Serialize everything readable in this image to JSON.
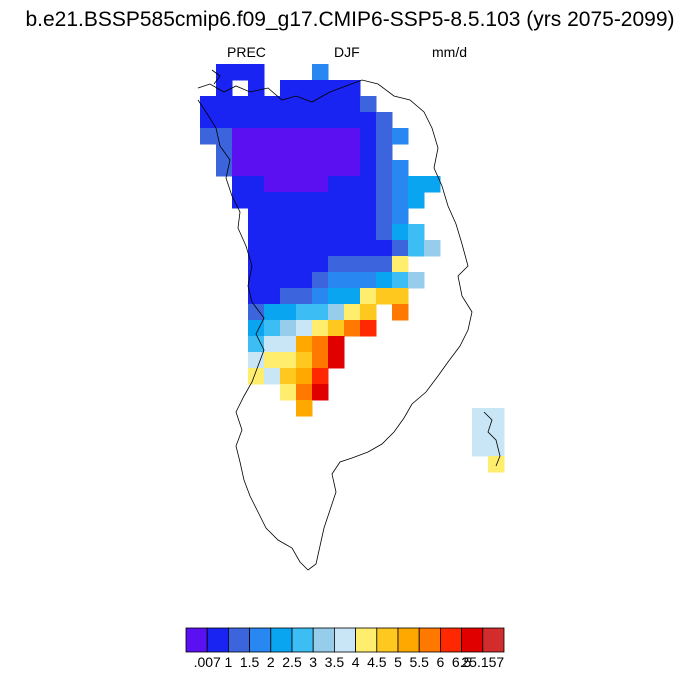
{
  "title": "b.e21.BSSP585cmip6.f09_g17.CMIP6-SSP5-8.5.103 (yrs 2075-2099)",
  "variable": "PREC",
  "season": "DJF",
  "units": "mm/d",
  "colorbar": {
    "labels": [
      ".007",
      "1",
      "1.5",
      "2",
      "2.5",
      "3",
      "3.5",
      "4",
      "4.5",
      "5",
      "5.5",
      "6",
      "6.5",
      "25.157"
    ],
    "colors": [
      "#5a10f0",
      "#1a24f2",
      "#3c64dc",
      "#2887f0",
      "#0aa5f0",
      "#3cbef5",
      "#96cdeb",
      "#c8e6f5",
      "#ffee6e",
      "#ffc81e",
      "#ffa800",
      "#ff7800",
      "#ff2800",
      "#e00000",
      "#d22c2c"
    ]
  }
}
